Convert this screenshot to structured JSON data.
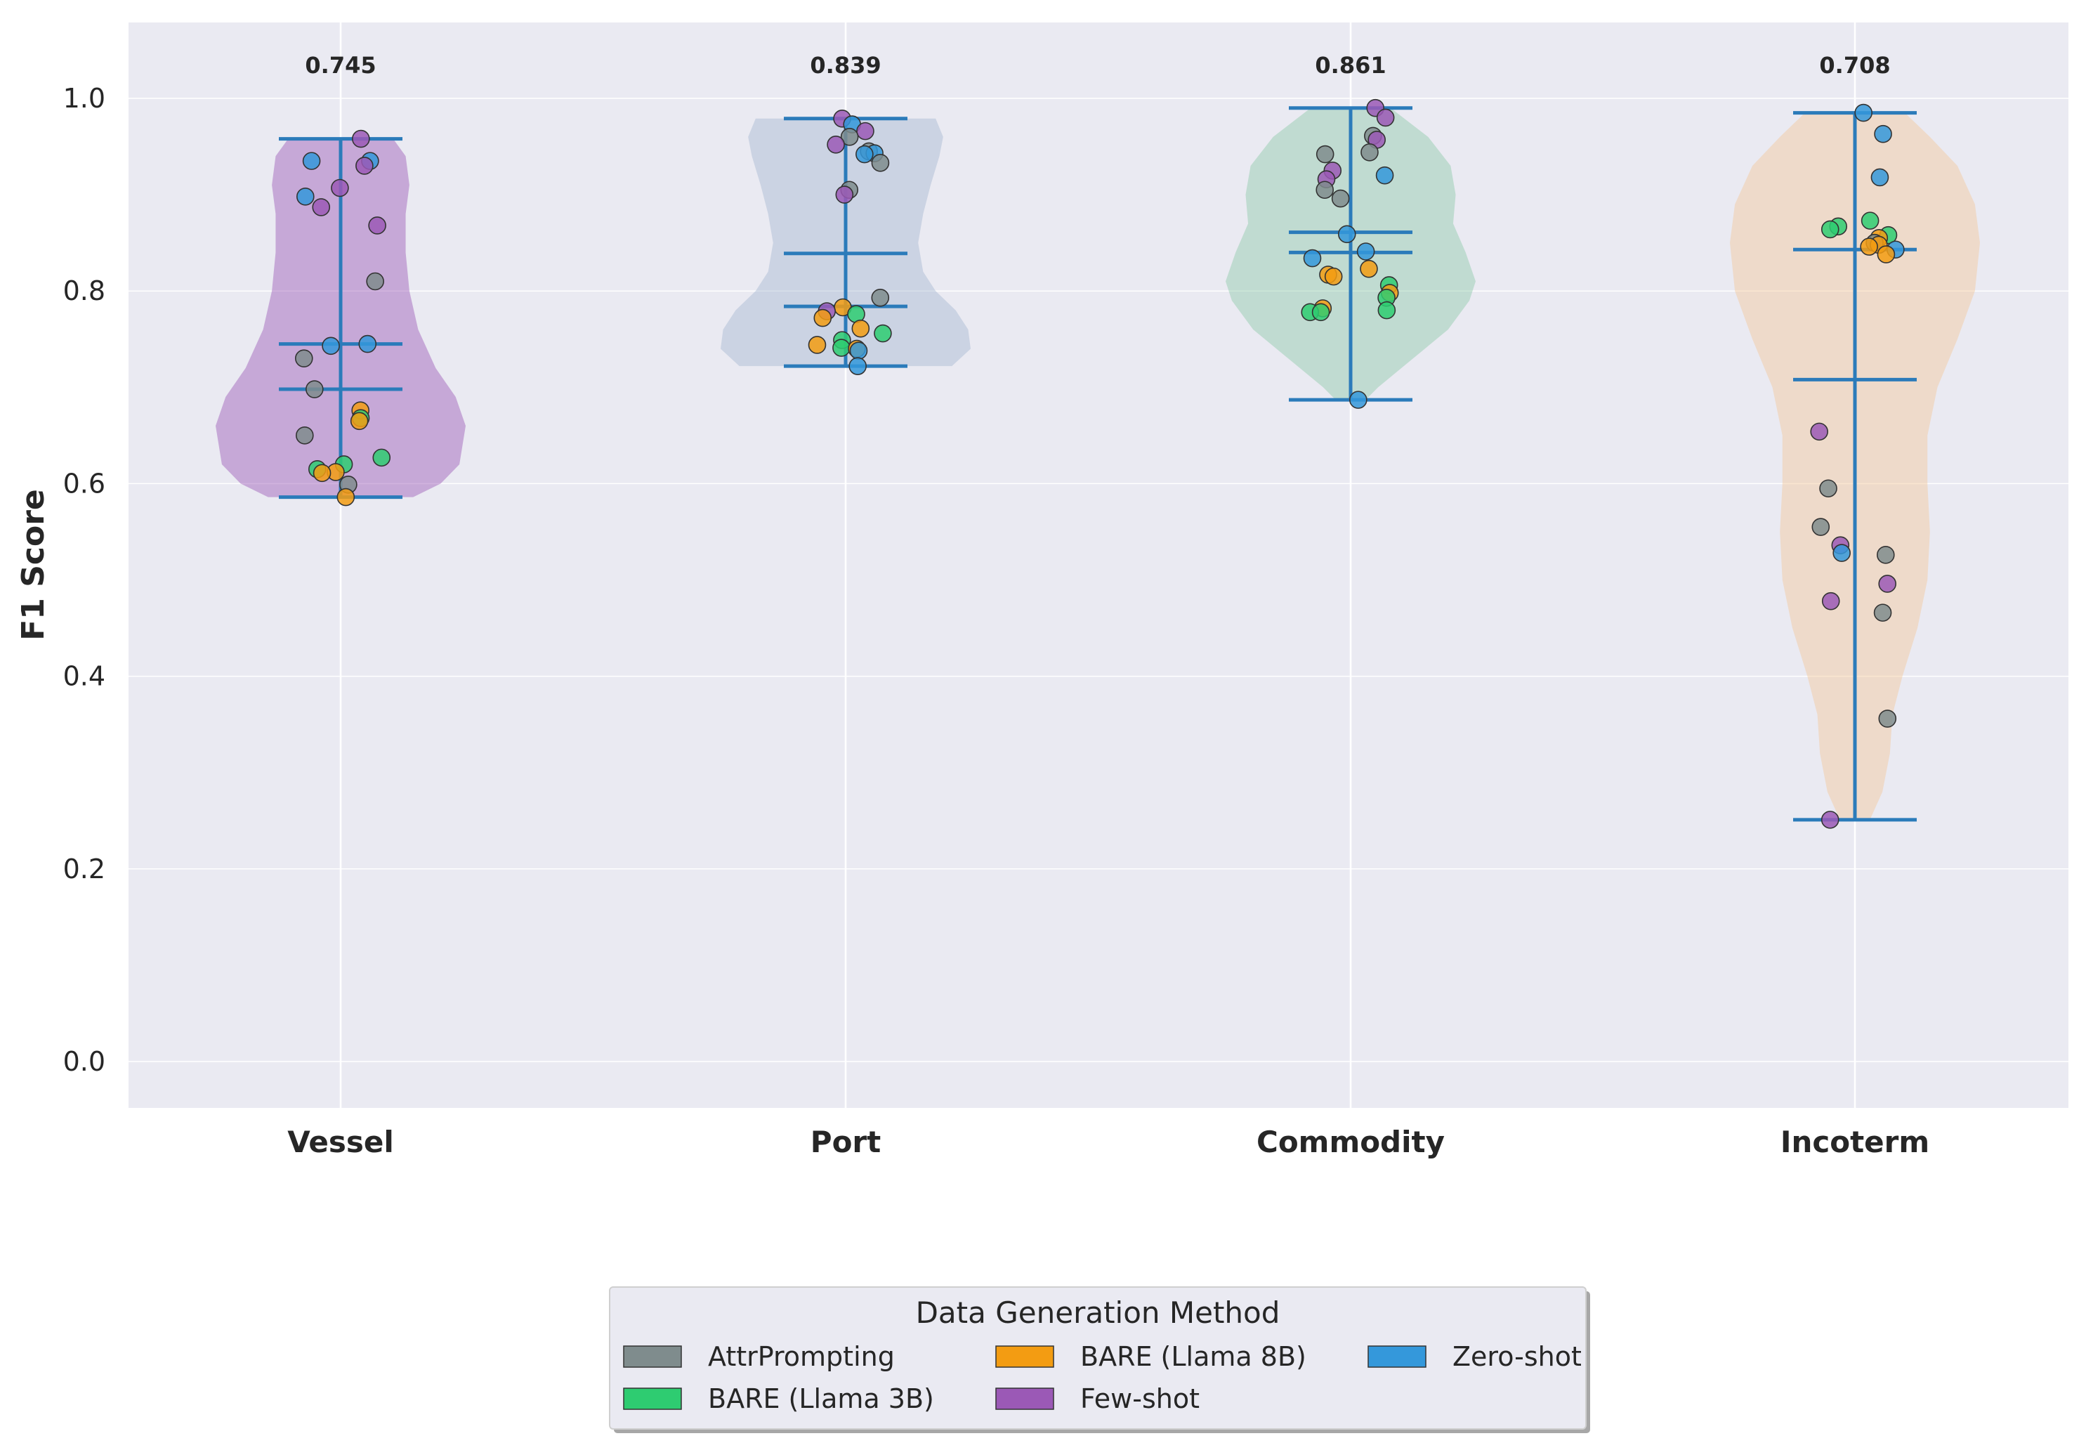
{
  "chart_data": {
    "type": "violin",
    "ylabel": "F1 Score",
    "xlabel": "",
    "ylim": [
      -0.05,
      1.08
    ],
    "yticks": [
      0.0,
      0.2,
      0.4,
      0.6,
      0.8,
      1.0
    ],
    "ytick_labels": [
      "0.0",
      "0.2",
      "0.4",
      "0.6",
      "0.8",
      "1.0"
    ],
    "grid": true,
    "legend": {
      "title": "Data Generation Method",
      "placement": "bottom-center",
      "entries": [
        {
          "label": "AttrPrompting",
          "color": "#7f8c8d"
        },
        {
          "label": "BARE (Llama 3B)",
          "color": "#2ecc71"
        },
        {
          "label": "BARE (Llama 8B)",
          "color": "#f39c12"
        },
        {
          "label": "Few-shot",
          "color": "#9b59b6"
        },
        {
          "label": "Zero-shot",
          "color": "#3498db"
        }
      ]
    },
    "categories": [
      {
        "name": "Vessel",
        "violin_color": "#9b59b6",
        "mean_label": "0.745",
        "mean": 0.745,
        "median": 0.698,
        "min": 0.586,
        "max": 0.958,
        "density": [
          [
            0.586,
            0.58
          ],
          [
            0.6,
            0.8
          ],
          [
            0.62,
            0.95
          ],
          [
            0.66,
            1.0
          ],
          [
            0.69,
            0.92
          ],
          [
            0.72,
            0.76
          ],
          [
            0.76,
            0.62
          ],
          [
            0.8,
            0.55
          ],
          [
            0.84,
            0.52
          ],
          [
            0.88,
            0.52
          ],
          [
            0.91,
            0.55
          ],
          [
            0.94,
            0.52
          ],
          [
            0.958,
            0.42
          ]
        ],
        "points": [
          {
            "method": "Few-shot",
            "y": 0.958
          },
          {
            "method": "Zero-shot",
            "y": 0.935
          },
          {
            "method": "Zero-shot",
            "y": 0.935
          },
          {
            "method": "Few-shot",
            "y": 0.93
          },
          {
            "method": "Few-shot",
            "y": 0.907
          },
          {
            "method": "Zero-shot",
            "y": 0.898
          },
          {
            "method": "Few-shot",
            "y": 0.887
          },
          {
            "method": "Few-shot",
            "y": 0.868
          },
          {
            "method": "AttrPrompting",
            "y": 0.81
          },
          {
            "method": "Zero-shot",
            "y": 0.745
          },
          {
            "method": "Zero-shot",
            "y": 0.743
          },
          {
            "method": "AttrPrompting",
            "y": 0.73
          },
          {
            "method": "AttrPrompting",
            "y": 0.698
          },
          {
            "method": "BARE (Llama 8B)",
            "y": 0.676
          },
          {
            "method": "BARE (Llama 3B)",
            "y": 0.668
          },
          {
            "method": "BARE (Llama 8B)",
            "y": 0.665
          },
          {
            "method": "AttrPrompting",
            "y": 0.65
          },
          {
            "method": "BARE (Llama 3B)",
            "y": 0.627
          },
          {
            "method": "BARE (Llama 3B)",
            "y": 0.62
          },
          {
            "method": "BARE (Llama 3B)",
            "y": 0.615
          },
          {
            "method": "BARE (Llama 8B)",
            "y": 0.612
          },
          {
            "method": "BARE (Llama 8B)",
            "y": 0.611
          },
          {
            "method": "AttrPrompting",
            "y": 0.599
          },
          {
            "method": "BARE (Llama 8B)",
            "y": 0.586
          }
        ]
      },
      {
        "name": "Port",
        "violin_color": "#a6b8d0",
        "mean_label": "0.839",
        "mean": 0.839,
        "median": 0.784,
        "min": 0.722,
        "max": 0.979,
        "density": [
          [
            0.722,
            0.85
          ],
          [
            0.74,
            1.0
          ],
          [
            0.76,
            0.98
          ],
          [
            0.78,
            0.88
          ],
          [
            0.8,
            0.72
          ],
          [
            0.82,
            0.62
          ],
          [
            0.85,
            0.58
          ],
          [
            0.88,
            0.62
          ],
          [
            0.91,
            0.68
          ],
          [
            0.94,
            0.75
          ],
          [
            0.96,
            0.78
          ],
          [
            0.979,
            0.72
          ]
        ],
        "points": [
          {
            "method": "Few-shot",
            "y": 0.979
          },
          {
            "method": "Zero-shot",
            "y": 0.973
          },
          {
            "method": "Few-shot",
            "y": 0.966
          },
          {
            "method": "AttrPrompting",
            "y": 0.96
          },
          {
            "method": "Few-shot",
            "y": 0.952
          },
          {
            "method": "AttrPrompting",
            "y": 0.945
          },
          {
            "method": "Zero-shot",
            "y": 0.943
          },
          {
            "method": "Zero-shot",
            "y": 0.942
          },
          {
            "method": "AttrPrompting",
            "y": 0.933
          },
          {
            "method": "AttrPrompting",
            "y": 0.905
          },
          {
            "method": "Few-shot",
            "y": 0.9
          },
          {
            "method": "AttrPrompting",
            "y": 0.793
          },
          {
            "method": "BARE (Llama 8B)",
            "y": 0.783
          },
          {
            "method": "Few-shot",
            "y": 0.779
          },
          {
            "method": "BARE (Llama 3B)",
            "y": 0.776
          },
          {
            "method": "BARE (Llama 8B)",
            "y": 0.772
          },
          {
            "method": "BARE (Llama 8B)",
            "y": 0.761
          },
          {
            "method": "BARE (Llama 3B)",
            "y": 0.756
          },
          {
            "method": "BARE (Llama 3B)",
            "y": 0.749
          },
          {
            "method": "BARE (Llama 8B)",
            "y": 0.744
          },
          {
            "method": "BARE (Llama 3B)",
            "y": 0.741
          },
          {
            "method": "BARE (Llama 8B)",
            "y": 0.74
          },
          {
            "method": "Zero-shot",
            "y": 0.738
          },
          {
            "method": "Zero-shot",
            "y": 0.722
          }
        ]
      },
      {
        "name": "Commodity",
        "violin_color": "#8fc9a8",
        "mean_label": "0.861",
        "mean": 0.861,
        "median": 0.84,
        "min": 0.687,
        "max": 0.99,
        "density": [
          [
            0.687,
            0.12
          ],
          [
            0.7,
            0.22
          ],
          [
            0.73,
            0.5
          ],
          [
            0.76,
            0.78
          ],
          [
            0.79,
            0.95
          ],
          [
            0.81,
            1.0
          ],
          [
            0.84,
            0.92
          ],
          [
            0.87,
            0.82
          ],
          [
            0.9,
            0.84
          ],
          [
            0.93,
            0.8
          ],
          [
            0.96,
            0.62
          ],
          [
            0.99,
            0.32
          ]
        ],
        "points": [
          {
            "method": "Few-shot",
            "y": 0.99
          },
          {
            "method": "Few-shot",
            "y": 0.98
          },
          {
            "method": "AttrPrompting",
            "y": 0.961
          },
          {
            "method": "Few-shot",
            "y": 0.957
          },
          {
            "method": "AttrPrompting",
            "y": 0.944
          },
          {
            "method": "AttrPrompting",
            "y": 0.942
          },
          {
            "method": "Few-shot",
            "y": 0.925
          },
          {
            "method": "Zero-shot",
            "y": 0.92
          },
          {
            "method": "Few-shot",
            "y": 0.916
          },
          {
            "method": "AttrPrompting",
            "y": 0.905
          },
          {
            "method": "AttrPrompting",
            "y": 0.896
          },
          {
            "method": "Zero-shot",
            "y": 0.859
          },
          {
            "method": "Zero-shot",
            "y": 0.841
          },
          {
            "method": "Zero-shot",
            "y": 0.834
          },
          {
            "method": "BARE (Llama 8B)",
            "y": 0.823
          },
          {
            "method": "BARE (Llama 8B)",
            "y": 0.817
          },
          {
            "method": "BARE (Llama 8B)",
            "y": 0.815
          },
          {
            "method": "BARE (Llama 3B)",
            "y": 0.806
          },
          {
            "method": "BARE (Llama 8B)",
            "y": 0.798
          },
          {
            "method": "BARE (Llama 3B)",
            "y": 0.793
          },
          {
            "method": "BARE (Llama 8B)",
            "y": 0.782
          },
          {
            "method": "BARE (Llama 3B)",
            "y": 0.78
          },
          {
            "method": "BARE (Llama 3B)",
            "y": 0.778
          },
          {
            "method": "BARE (Llama 3B)",
            "y": 0.778
          },
          {
            "method": "Zero-shot",
            "y": 0.687
          }
        ]
      },
      {
        "name": "Incoterm",
        "violin_color": "#f5c89a",
        "mean_label": "0.708",
        "mean": 0.708,
        "median": 0.843,
        "min": 0.251,
        "max": 0.985,
        "density": [
          [
            0.251,
            0.12
          ],
          [
            0.28,
            0.22
          ],
          [
            0.32,
            0.28
          ],
          [
            0.36,
            0.3
          ],
          [
            0.4,
            0.38
          ],
          [
            0.45,
            0.5
          ],
          [
            0.5,
            0.58
          ],
          [
            0.55,
            0.6
          ],
          [
            0.6,
            0.58
          ],
          [
            0.65,
            0.58
          ],
          [
            0.7,
            0.66
          ],
          [
            0.75,
            0.82
          ],
          [
            0.8,
            0.96
          ],
          [
            0.85,
            1.0
          ],
          [
            0.89,
            0.96
          ],
          [
            0.93,
            0.82
          ],
          [
            0.96,
            0.6
          ],
          [
            0.985,
            0.4
          ]
        ],
        "points": [
          {
            "method": "Zero-shot",
            "y": 0.985
          },
          {
            "method": "Zero-shot",
            "y": 0.963
          },
          {
            "method": "Zero-shot",
            "y": 0.918
          },
          {
            "method": "BARE (Llama 3B)",
            "y": 0.873
          },
          {
            "method": "BARE (Llama 3B)",
            "y": 0.867
          },
          {
            "method": "BARE (Llama 3B)",
            "y": 0.864
          },
          {
            "method": "BARE (Llama 3B)",
            "y": 0.858
          },
          {
            "method": "BARE (Llama 8B)",
            "y": 0.855
          },
          {
            "method": "AttrPrompting",
            "y": 0.85
          },
          {
            "method": "BARE (Llama 8B)",
            "y": 0.848
          },
          {
            "method": "BARE (Llama 8B)",
            "y": 0.846
          },
          {
            "method": "Zero-shot",
            "y": 0.843
          },
          {
            "method": "BARE (Llama 8B)",
            "y": 0.838
          },
          {
            "method": "Few-shot",
            "y": 0.654
          },
          {
            "method": "AttrPrompting",
            "y": 0.595
          },
          {
            "method": "AttrPrompting",
            "y": 0.555
          },
          {
            "method": "Few-shot",
            "y": 0.536
          },
          {
            "method": "Zero-shot",
            "y": 0.528
          },
          {
            "method": "AttrPrompting",
            "y": 0.526
          },
          {
            "method": "Few-shot",
            "y": 0.496
          },
          {
            "method": "Few-shot",
            "y": 0.478
          },
          {
            "method": "AttrPrompting",
            "y": 0.466
          },
          {
            "method": "AttrPrompting",
            "y": 0.356
          },
          {
            "method": "Few-shot",
            "y": 0.251
          }
        ]
      }
    ]
  }
}
